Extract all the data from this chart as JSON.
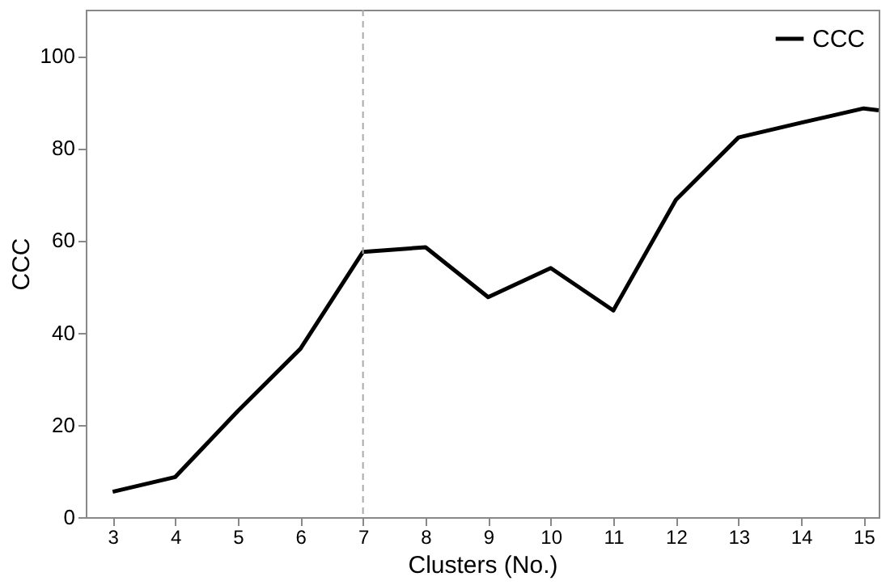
{
  "chart_data": {
    "type": "line",
    "xlabel": "Clusters (No.)",
    "ylabel": "CCC",
    "series": [
      {
        "name": "CCC",
        "color": "#000000",
        "x": [
          3,
          4,
          5,
          6,
          7,
          8,
          9,
          10,
          11,
          12,
          13,
          14,
          15,
          15.24
        ],
        "values": [
          5.5,
          8.7,
          23,
          36.5,
          57.5,
          58.5,
          47.7,
          54,
          44.8,
          68.8,
          82.3,
          85.5,
          88.6,
          88.2
        ]
      }
    ],
    "xlim": [
      2.57,
      15.24
    ],
    "xticks": [
      3,
      4,
      5,
      6,
      7,
      8,
      9,
      10,
      11,
      12,
      13,
      14,
      15
    ],
    "ylim": [
      0,
      110
    ],
    "yticks": [
      0,
      20,
      40,
      60,
      80,
      100
    ],
    "ref_lines": [
      {
        "axis": "x",
        "value": 7,
        "color": "#aaaaaa",
        "line_style": "dashed"
      }
    ],
    "grid": false,
    "legend": "top right",
    "marker": "none",
    "line_style": "solid"
  }
}
